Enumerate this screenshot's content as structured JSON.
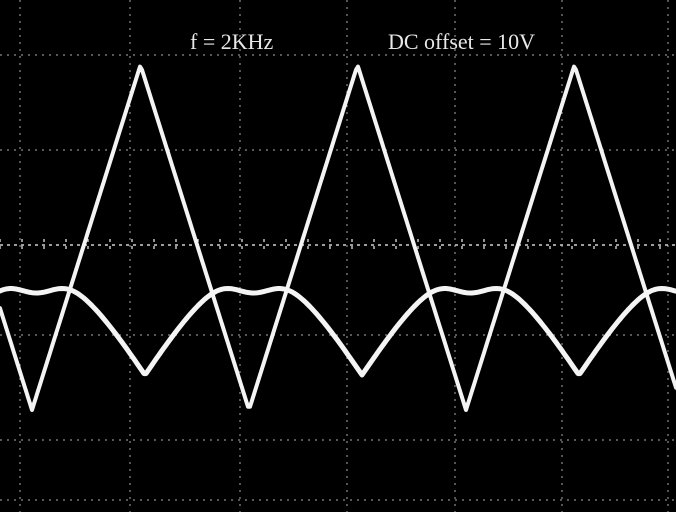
{
  "screen": {
    "frequency_label": "f = 2KHz",
    "offset_label": "DC offset = 10V"
  }
}
